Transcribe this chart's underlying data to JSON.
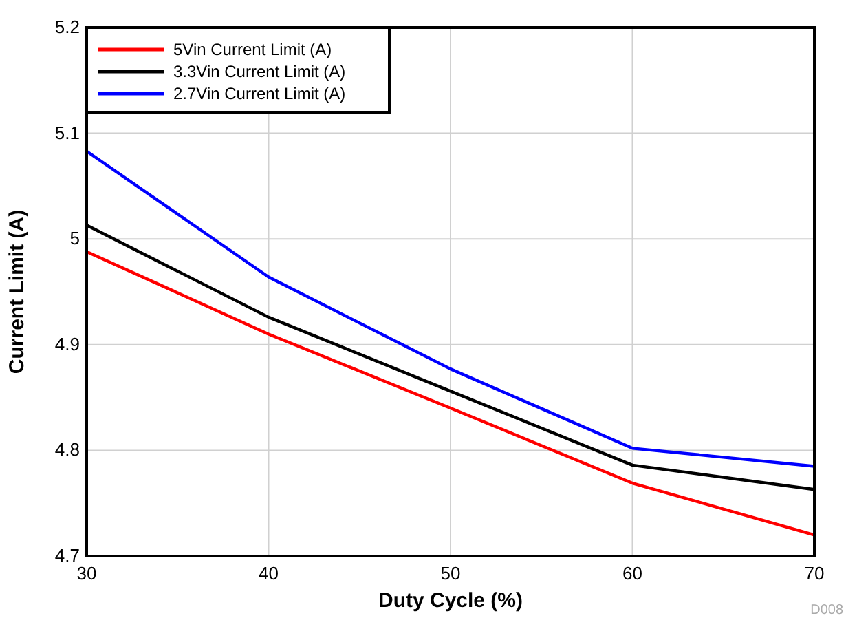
{
  "chart_data": {
    "type": "line",
    "xlabel": "Duty Cycle (%)",
    "ylabel": "Current Limit (A)",
    "x": [
      30,
      40,
      50,
      60,
      70
    ],
    "series": [
      {
        "name": "5Vin Current Limit (A)",
        "color": "#ff0000",
        "values": [
          4.988,
          4.91,
          4.84,
          4.769,
          4.72
        ]
      },
      {
        "name": "3.3Vin Current Limit (A)",
        "color": "#000000",
        "values": [
          5.013,
          4.926,
          4.856,
          4.786,
          4.763
        ]
      },
      {
        "name": "2.7Vin Current Limit (A)",
        "color": "#0000ff",
        "values": [
          5.083,
          4.964,
          4.877,
          4.802,
          4.785
        ]
      }
    ],
    "xlim": [
      30,
      70
    ],
    "xticks": [
      30,
      40,
      50,
      60,
      70
    ],
    "ylim": [
      4.7,
      5.2
    ],
    "yticks": [
      4.7,
      4.8,
      4.9,
      5,
      5.1,
      5.2
    ],
    "grid": true,
    "legend": "top left",
    "line_style": "solid",
    "marker": "none",
    "annotations": [
      "D008"
    ]
  }
}
